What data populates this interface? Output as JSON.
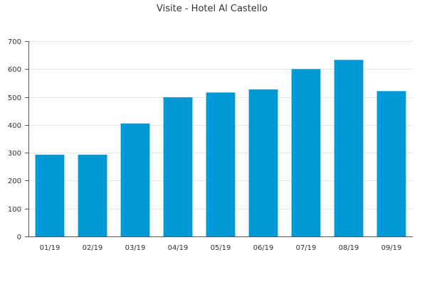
{
  "chart_data": {
    "type": "bar",
    "title": "Visite - Hotel Al Castello",
    "xlabel": "",
    "ylabel": "",
    "categories": [
      "01/19",
      "02/19",
      "03/19",
      "04/19",
      "05/19",
      "06/19",
      "07/19",
      "08/19",
      "09/19"
    ],
    "values": [
      293,
      293,
      405,
      499,
      516,
      527,
      600,
      633,
      521
    ],
    "ylim": [
      0,
      700
    ],
    "yticks": [
      0,
      100,
      200,
      300,
      400,
      500,
      600,
      700
    ],
    "grid": true,
    "legend": "none",
    "bar_color": "#0099d6"
  }
}
